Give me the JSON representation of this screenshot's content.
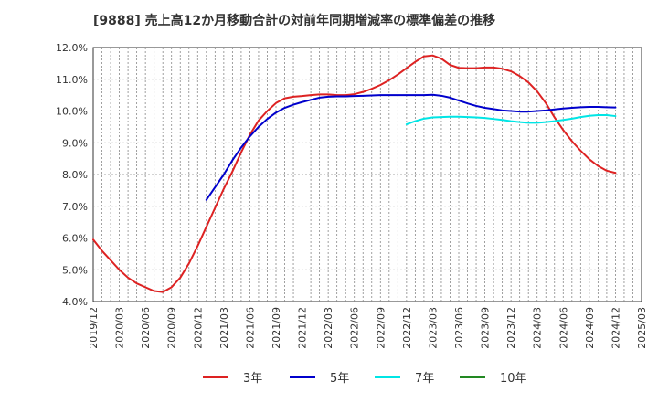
{
  "chart_data": {
    "type": "line",
    "title": "[9888]  売上高12か月移動合計の対前年同期増減率の標準偏差の推移",
    "xlabel": "",
    "ylabel": "",
    "ylim": [
      4.0,
      12.0
    ],
    "yticks": [
      4,
      5,
      6,
      7,
      8,
      9,
      10,
      11,
      12
    ],
    "ytick_labels": [
      "4.0%",
      "5.0%",
      "6.0%",
      "7.0%",
      "8.0%",
      "9.0%",
      "10.0%",
      "11.0%",
      "12.0%"
    ],
    "xlim": [
      "2019/12",
      "2025/03"
    ],
    "xtick_labels": [
      "2019/12",
      "2020/03",
      "2020/06",
      "2020/09",
      "2020/12",
      "2021/03",
      "2021/06",
      "2021/09",
      "2021/12",
      "2022/03",
      "2022/06",
      "2022/09",
      "2022/12",
      "2023/03",
      "2023/06",
      "2023/09",
      "2023/12",
      "2024/03",
      "2024/06",
      "2024/09",
      "2024/12",
      "2025/03"
    ],
    "grid": true,
    "legend_position": "bottom",
    "series": [
      {
        "name": "3年",
        "color": "#dd2222",
        "x": [
          "2019/12",
          "2020/01",
          "2020/02",
          "2020/03",
          "2020/04",
          "2020/05",
          "2020/06",
          "2020/07",
          "2020/08",
          "2020/09",
          "2020/10",
          "2020/11",
          "2020/12",
          "2021/01",
          "2021/02",
          "2021/03",
          "2021/04",
          "2021/05",
          "2021/06",
          "2021/07",
          "2021/08",
          "2021/09",
          "2021/10",
          "2021/11",
          "2021/12",
          "2022/01",
          "2022/02",
          "2022/03",
          "2022/04",
          "2022/05",
          "2022/06",
          "2022/07",
          "2022/08",
          "2022/09",
          "2022/10",
          "2022/11",
          "2022/12",
          "2023/01",
          "2023/02",
          "2023/03",
          "2023/04",
          "2023/05",
          "2023/06",
          "2023/07",
          "2023/08",
          "2023/09",
          "2023/10",
          "2023/11",
          "2023/12",
          "2024/01",
          "2024/02",
          "2024/03",
          "2024/04",
          "2024/05",
          "2024/06",
          "2024/07",
          "2024/08",
          "2024/09",
          "2024/10",
          "2024/11",
          "2024/12"
        ],
        "values": [
          5.95,
          5.6,
          5.3,
          5.0,
          4.75,
          4.57,
          4.45,
          4.33,
          4.3,
          4.45,
          4.75,
          5.2,
          5.75,
          6.35,
          6.95,
          7.55,
          8.1,
          8.7,
          9.25,
          9.7,
          10.0,
          10.25,
          10.4,
          10.45,
          10.47,
          10.5,
          10.52,
          10.52,
          10.5,
          10.5,
          10.53,
          10.6,
          10.7,
          10.82,
          10.97,
          11.15,
          11.35,
          11.55,
          11.72,
          11.75,
          11.65,
          11.45,
          11.36,
          11.35,
          11.35,
          11.37,
          11.37,
          11.33,
          11.25,
          11.1,
          10.9,
          10.62,
          10.25,
          9.8,
          9.4,
          9.05,
          8.75,
          8.48,
          8.27,
          8.12,
          8.05
        ]
      },
      {
        "name": "5年",
        "color": "#0000cc",
        "x": [
          "2021/01",
          "2021/02",
          "2021/03",
          "2021/04",
          "2021/05",
          "2021/06",
          "2021/07",
          "2021/08",
          "2021/09",
          "2021/10",
          "2021/11",
          "2021/12",
          "2022/01",
          "2022/02",
          "2022/03",
          "2022/04",
          "2022/05",
          "2022/06",
          "2022/07",
          "2022/08",
          "2022/09",
          "2022/10",
          "2022/11",
          "2022/12",
          "2023/01",
          "2023/02",
          "2023/03",
          "2023/04",
          "2023/05",
          "2023/06",
          "2023/07",
          "2023/08",
          "2023/09",
          "2023/10",
          "2023/11",
          "2023/12",
          "2024/01",
          "2024/02",
          "2024/03",
          "2024/04",
          "2024/05",
          "2024/06",
          "2024/07",
          "2024/08",
          "2024/09",
          "2024/10",
          "2024/11",
          "2024/12"
        ],
        "values": [
          7.2,
          7.6,
          8.0,
          8.45,
          8.85,
          9.2,
          9.5,
          9.75,
          9.95,
          10.1,
          10.2,
          10.28,
          10.35,
          10.42,
          10.45,
          10.46,
          10.46,
          10.47,
          10.48,
          10.49,
          10.5,
          10.5,
          10.5,
          10.5,
          10.5,
          10.5,
          10.51,
          10.48,
          10.42,
          10.33,
          10.24,
          10.16,
          10.1,
          10.06,
          10.02,
          10.0,
          9.98,
          9.98,
          10.0,
          10.02,
          10.05,
          10.08,
          10.1,
          10.12,
          10.13,
          10.13,
          10.12,
          10.11
        ]
      },
      {
        "name": "7年",
        "color": "#00e5e5",
        "x": [
          "2022/12",
          "2023/01",
          "2023/02",
          "2023/03",
          "2023/04",
          "2023/05",
          "2023/06",
          "2023/07",
          "2023/08",
          "2023/09",
          "2023/10",
          "2023/11",
          "2023/12",
          "2024/01",
          "2024/02",
          "2024/03",
          "2024/04",
          "2024/05",
          "2024/06",
          "2024/07",
          "2024/08",
          "2024/09",
          "2024/10",
          "2024/11",
          "2024/12"
        ],
        "values": [
          9.58,
          9.68,
          9.76,
          9.8,
          9.81,
          9.82,
          9.82,
          9.81,
          9.8,
          9.78,
          9.75,
          9.72,
          9.68,
          9.65,
          9.63,
          9.63,
          9.65,
          9.68,
          9.72,
          9.76,
          9.81,
          9.85,
          9.87,
          9.87,
          9.84
        ]
      },
      {
        "name": "10年",
        "color": "#228822",
        "x": [],
        "values": []
      }
    ]
  }
}
